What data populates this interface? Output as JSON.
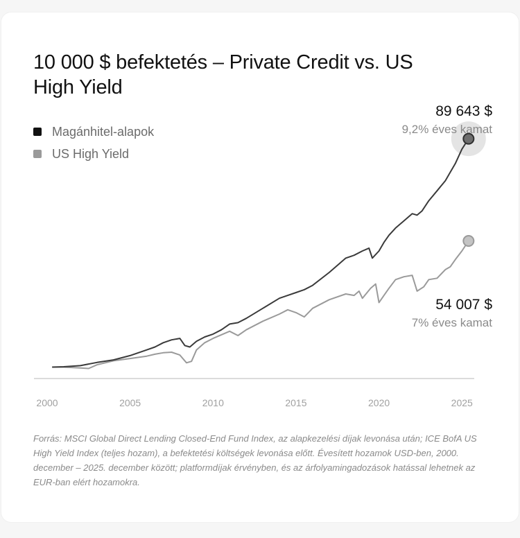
{
  "colors": {
    "series_private": "#3a3a3a",
    "series_hy": "#9a9a9a",
    "legend_private": "#111111",
    "legend_hy": "#9a9a9a",
    "axis": "#cfcfcf",
    "tick_text": "#a0a0a0",
    "value_text": "#111111",
    "sub_text": "#8a8a8a"
  },
  "footnote": "Forrás: MSCI Global Direct Lending Closed-End Fund Index, az alapkezelési díjak levonása után; ICE BofA US High Yield Index (teljes hozam), a befektetési költségek levonása előtt. Évesített hozamok USD-ben, 2000. december – 2025. december között; platformdíjak érvényben, és az árfolyamingadozások hatással lehetnek az EUR-ban elért hozamokra.",
  "chart_data": {
    "type": "line",
    "title": "10 000 $ befektetés – Private Credit vs. US High Yield",
    "xlabel": "",
    "ylabel": "",
    "xlim": [
      2000,
      2025.7
    ],
    "ylim": [
      6000,
      95000
    ],
    "grid": false,
    "legend_position": "top-left",
    "x_ticks": [
      2000,
      2005,
      2010,
      2015,
      2020,
      2025
    ],
    "x_tick_labels": [
      "2000",
      "2005",
      "2010",
      "2015",
      "2020",
      "2025"
    ],
    "series": [
      {
        "name": "Magánhitel-alapok",
        "end_label": "89 643 $",
        "end_sublabel": "9,2% éves kamat",
        "x": [
          2000.3,
          2001,
          2002,
          2003,
          2004,
          2005,
          2005.5,
          2006,
          2006.5,
          2007,
          2007.5,
          2008,
          2008.3,
          2008.6,
          2009,
          2009.5,
          2010,
          2010.5,
          2011,
          2011.5,
          2012,
          2013,
          2014,
          2014.5,
          2015,
          2015.5,
          2016,
          2017,
          2018,
          2018.5,
          2019,
          2019.4,
          2019.6,
          2020,
          2020.3,
          2020.6,
          2021,
          2021.5,
          2022,
          2022.3,
          2022.6,
          2023,
          2023.5,
          2024,
          2024.3,
          2024.6,
          2025,
          2025.4
        ],
        "values": [
          10000,
          10100,
          10500,
          11600,
          12500,
          14000,
          15000,
          16000,
          17000,
          18500,
          19500,
          20000,
          17500,
          17000,
          19000,
          20500,
          21500,
          23000,
          25000,
          25500,
          27000,
          30500,
          34000,
          35000,
          36000,
          37000,
          38500,
          43000,
          48000,
          49000,
          50500,
          51500,
          48000,
          50500,
          53500,
          56000,
          58500,
          61000,
          63500,
          63000,
          64500,
          68000,
          71500,
          75000,
          78000,
          81000,
          86000,
          89643
        ]
      },
      {
        "name": "US High Yield",
        "end_label": "54 007 $",
        "end_sublabel": "7% éves kamat",
        "x": [
          2000.3,
          2001,
          2002,
          2002.5,
          2003,
          2004,
          2005,
          2006,
          2006.5,
          2007,
          2007.5,
          2008,
          2008.4,
          2008.7,
          2009,
          2009.5,
          2010,
          2011,
          2011.5,
          2012,
          2013,
          2014,
          2014.5,
          2015,
          2015.5,
          2016,
          2017,
          2018,
          2018.5,
          2018.8,
          2019,
          2019.5,
          2019.8,
          2020,
          2020.3,
          2020.6,
          2021,
          2021.5,
          2022,
          2022.3,
          2022.7,
          2023,
          2023.5,
          2024,
          2024.3,
          2024.6,
          2025,
          2025.4
        ],
        "values": [
          10000,
          10000,
          9700,
          9500,
          10800,
          12200,
          13000,
          13800,
          14500,
          15000,
          15200,
          14200,
          11500,
          12000,
          16000,
          18500,
          20000,
          22500,
          21000,
          23000,
          26000,
          28500,
          30000,
          29000,
          27500,
          30500,
          33500,
          35500,
          35000,
          36500,
          34000,
          37500,
          39000,
          32500,
          35000,
          37500,
          40500,
          41500,
          42000,
          36500,
          38000,
          40500,
          41000,
          44000,
          45000,
          47500,
          50500,
          54007
        ]
      }
    ]
  }
}
